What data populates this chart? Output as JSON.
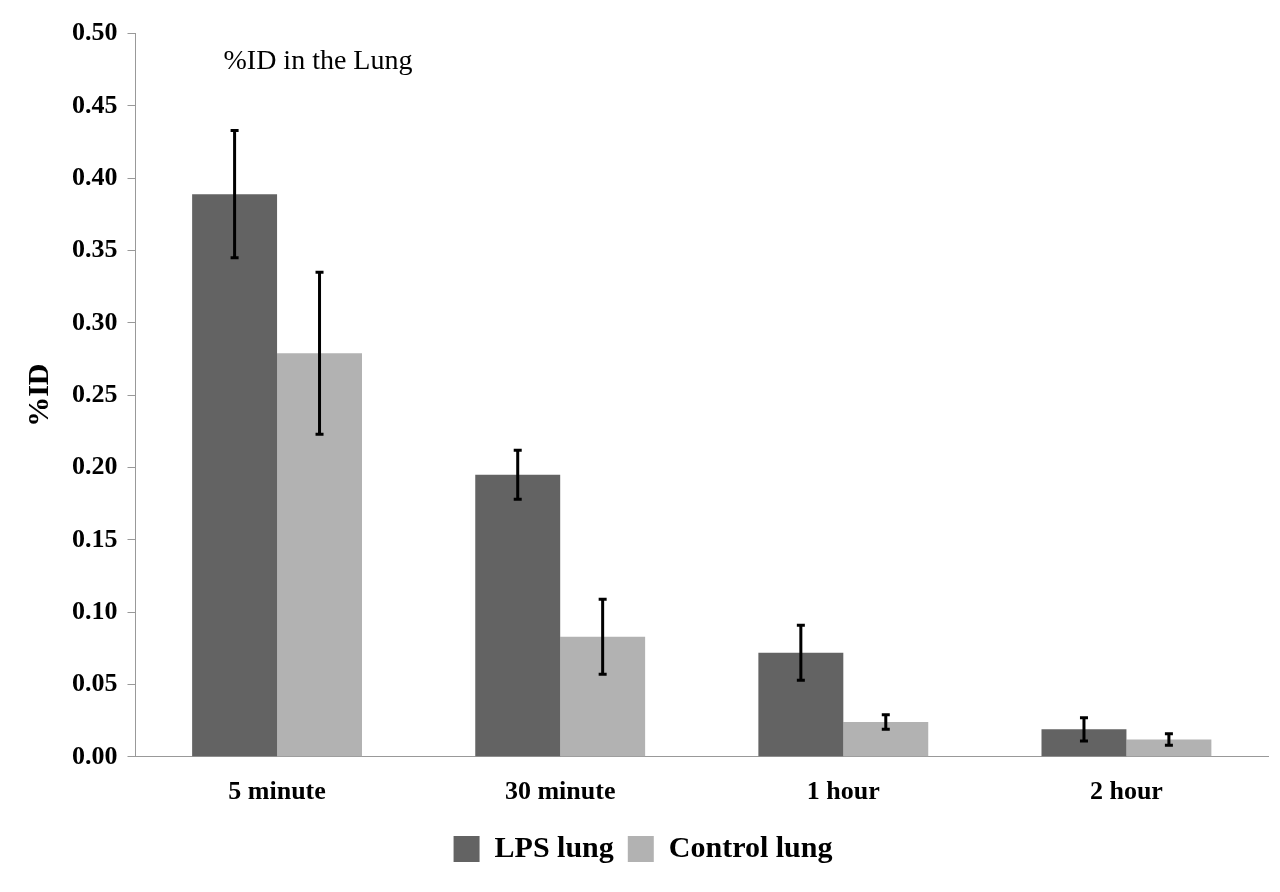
{
  "chart_data": {
    "type": "bar",
    "title": "%ID in the Lung",
    "ylabel": "%ID",
    "categories": [
      "5 minute",
      "30 minute",
      "1 hour",
      "2 hour"
    ],
    "series": [
      {
        "name": "LPS lung",
        "color": "#636363",
        "values": [
          0.389,
          0.195,
          0.072,
          0.019
        ],
        "errors": [
          0.044,
          0.017,
          0.019,
          0.008
        ]
      },
      {
        "name": "Control lung",
        "color": "#b2b2b2",
        "values": [
          0.279,
          0.083,
          0.024,
          0.012
        ],
        "errors": [
          0.056,
          0.026,
          0.005,
          0.004
        ]
      }
    ],
    "ylim": [
      0,
      0.5
    ],
    "yticks": [
      {
        "value": 0,
        "label": "0.00"
      },
      {
        "value": 0.05,
        "label": "0.05"
      },
      {
        "value": 0.1,
        "label": "0.10"
      },
      {
        "value": 0.15,
        "label": "0.15"
      },
      {
        "value": 0.2,
        "label": "0.20"
      },
      {
        "value": 0.25,
        "label": "0.25"
      },
      {
        "value": 0.3,
        "label": "0.30"
      },
      {
        "value": 0.35,
        "label": "0.35"
      },
      {
        "value": 0.4,
        "label": "0.40"
      },
      {
        "value": 0.45,
        "label": "0.45"
      },
      {
        "value": 0.5,
        "label": "0.50"
      }
    ],
    "grid": false,
    "legend": "bottom"
  }
}
